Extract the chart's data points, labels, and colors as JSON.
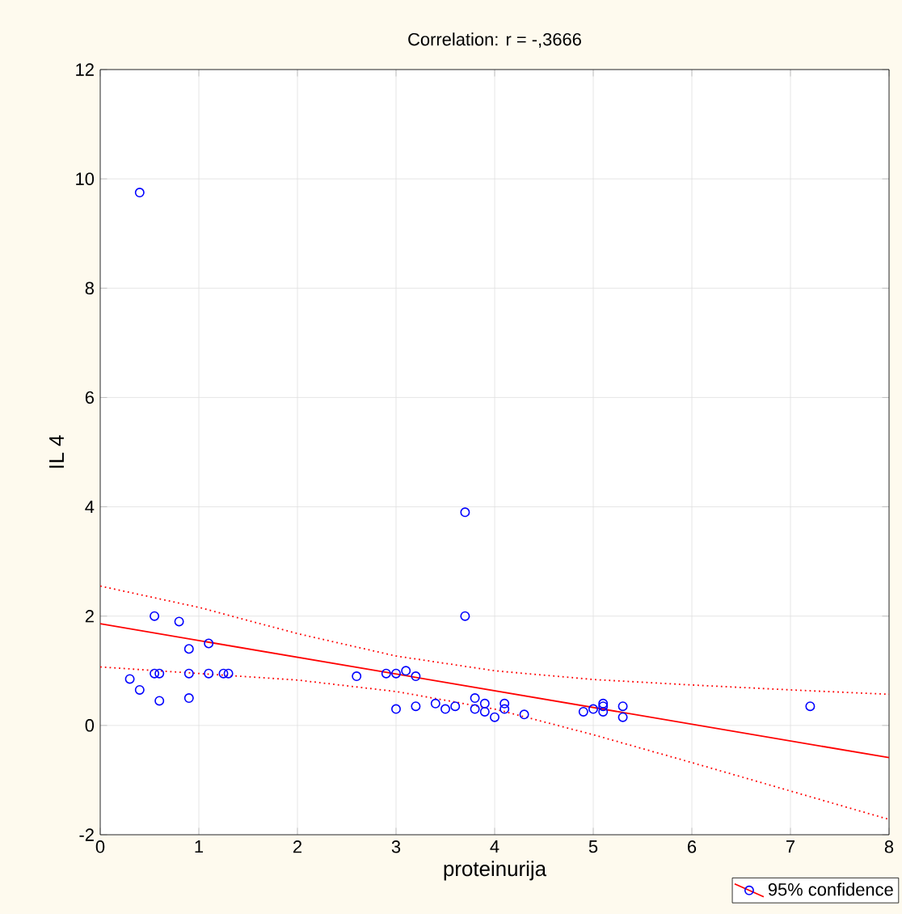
{
  "chart_data": {
    "type": "scatter",
    "title": "Correlation: r = -,3666",
    "xlabel": "proteinurija",
    "ylabel": "IL 4",
    "xlim": [
      0,
      8
    ],
    "ylim": [
      -2,
      12
    ],
    "xticks": [
      0,
      1,
      2,
      3,
      4,
      5,
      6,
      7,
      8
    ],
    "yticks": [
      -2,
      0,
      2,
      4,
      6,
      8,
      10,
      12
    ],
    "grid": true,
    "legend": "bottom right",
    "series": [
      {
        "color": "#0000ff",
        "marker": "circle",
        "x": [
          0.3,
          0.4,
          0.4,
          0.55,
          0.55,
          0.6,
          0.6,
          0.8,
          0.9,
          0.9,
          0.9,
          1.1,
          1.1,
          1.25,
          1.3,
          2.6,
          2.9,
          3.0,
          3.0,
          3.1,
          3.2,
          3.2,
          3.4,
          3.5,
          3.6,
          3.7,
          3.7,
          3.8,
          3.8,
          3.9,
          3.9,
          4.0,
          4.1,
          4.1,
          4.3,
          4.9,
          5.0,
          5.1,
          5.1,
          5.1,
          5.3,
          5.3,
          7.2
        ],
        "values": [
          0.85,
          0.65,
          9.75,
          2.0,
          0.95,
          0.95,
          0.45,
          1.9,
          1.4,
          0.95,
          0.5,
          1.5,
          0.95,
          0.95,
          0.95,
          0.9,
          0.95,
          0.95,
          0.3,
          1.0,
          0.9,
          0.35,
          0.4,
          0.3,
          0.35,
          3.9,
          2.0,
          0.5,
          0.3,
          0.4,
          0.25,
          0.15,
          0.4,
          0.3,
          0.2,
          0.25,
          0.3,
          0.35,
          0.25,
          0.4,
          0.35,
          0.15,
          0.35
        ]
      },
      {
        "type": "line",
        "name": "95% confidence",
        "color": "#ff0000",
        "marker": "none",
        "line_style": "solid",
        "x": [
          0,
          8
        ],
        "values": [
          1.86,
          -0.59
        ]
      },
      {
        "type": "line",
        "color": "#ff0000",
        "marker": "none",
        "line_style": "dotted",
        "x": [
          0,
          1,
          2,
          3,
          4,
          5,
          6,
          7,
          8
        ],
        "values": [
          2.55,
          2.16,
          1.68,
          1.27,
          1.0,
          0.84,
          0.74,
          0.65,
          0.57
        ]
      },
      {
        "type": "line",
        "color": "#ff0000",
        "marker": "none",
        "line_style": "dotted",
        "x": [
          0,
          1,
          2,
          3,
          4,
          5,
          6,
          7,
          8
        ],
        "values": [
          1.07,
          0.95,
          0.83,
          0.62,
          0.3,
          -0.17,
          -0.68,
          -1.2,
          -1.72
        ]
      }
    ]
  }
}
